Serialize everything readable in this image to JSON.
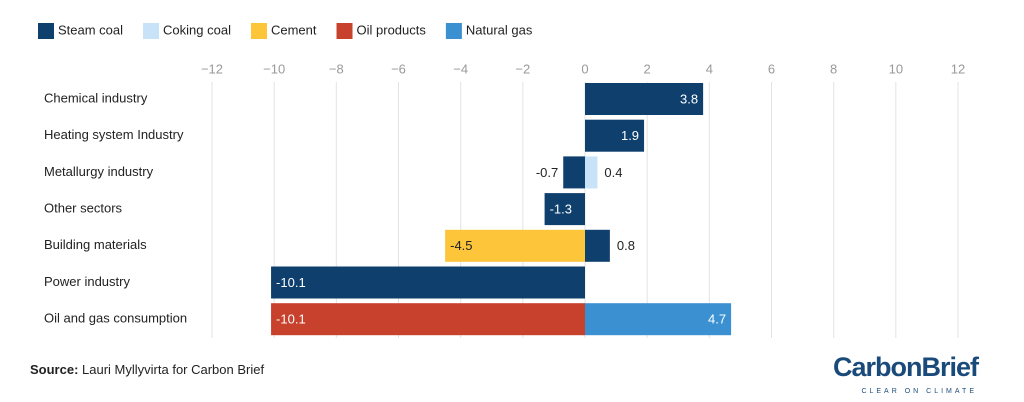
{
  "chart_data": {
    "type": "diverging-stacked-bar",
    "categories": [
      "Chemical industry",
      "Heating system Industry",
      "Metallurgy industry",
      "Other sectors",
      "Building materials",
      "Power industry",
      "Oil and gas consumption"
    ],
    "series": [
      {
        "name": "Steam coal",
        "color": "#0e3f6d",
        "values": [
          3.8,
          1.9,
          -0.7,
          -1.3,
          0.8,
          -10.1,
          null
        ]
      },
      {
        "name": "Coking coal",
        "color": "#c8e3f7",
        "values": [
          null,
          null,
          0.4,
          null,
          null,
          null,
          null
        ]
      },
      {
        "name": "Cement",
        "color": "#fdc53a",
        "values": [
          null,
          null,
          null,
          null,
          -4.5,
          null,
          null
        ]
      },
      {
        "name": "Oil products",
        "color": "#c8412c",
        "values": [
          null,
          null,
          null,
          null,
          null,
          null,
          -10.1
        ]
      },
      {
        "name": "Natural gas",
        "color": "#3a90d1",
        "values": [
          null,
          null,
          null,
          null,
          null,
          null,
          4.7
        ]
      }
    ],
    "xlim": [
      -12,
      12
    ],
    "xticks": [
      {
        "value": -12,
        "label": "−12"
      },
      {
        "value": -10,
        "label": "−10"
      },
      {
        "value": -8,
        "label": "−8"
      },
      {
        "value": -6,
        "label": "−6"
      },
      {
        "value": -4,
        "label": "−4"
      },
      {
        "value": -2,
        "label": "−2"
      },
      0,
      2,
      4,
      6,
      8,
      10,
      12
    ],
    "grid": true,
    "source_label": "Source:",
    "source_text": "Lauri Myllyvirta for Carbon Brief",
    "logo": {
      "name": "CarbonBrief",
      "tagline": "CLEAR ON CLIMATE"
    }
  }
}
